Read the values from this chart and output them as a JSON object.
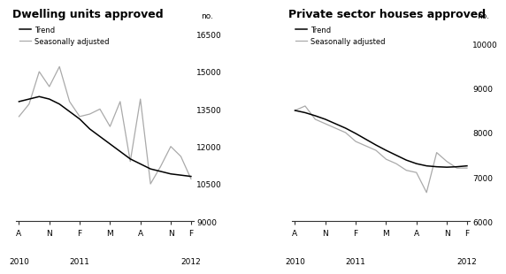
{
  "left_title": "Dwelling units approved",
  "right_title": "Private sector houses approved",
  "ylabel": "no.",
  "x_labels": [
    "A",
    "N",
    "F",
    "M",
    "A",
    "N",
    "F"
  ],
  "left_ylim": [
    9000,
    17000
  ],
  "left_yticks": [
    9000,
    10500,
    12000,
    13500,
    15000,
    16500
  ],
  "right_ylim": [
    6000,
    10500
  ],
  "right_yticks": [
    6000,
    7000,
    8000,
    9000,
    10000
  ],
  "trend_color": "#000000",
  "seasonal_color": "#aaaaaa",
  "background_color": "#ffffff",
  "left_trend": [
    13800,
    13900,
    14000,
    13900,
    13700,
    13400,
    13100,
    12700,
    12400,
    12100,
    11800,
    11500,
    11300,
    11100,
    11000,
    10900,
    10850,
    10800
  ],
  "left_seasonal": [
    13200,
    13700,
    15000,
    14400,
    15200,
    13800,
    13200,
    13300,
    13500,
    12800,
    13800,
    11400,
    13900,
    10500,
    11200,
    12000,
    11600,
    10700
  ],
  "right_trend": [
    8500,
    8450,
    8380,
    8300,
    8200,
    8100,
    7980,
    7850,
    7720,
    7600,
    7490,
    7380,
    7300,
    7250,
    7230,
    7220,
    7230,
    7250
  ],
  "right_seasonal": [
    8500,
    8600,
    8300,
    8200,
    8100,
    8000,
    7800,
    7700,
    7600,
    7400,
    7300,
    7150,
    7100,
    6650,
    7550,
    7350,
    7200,
    7200
  ]
}
